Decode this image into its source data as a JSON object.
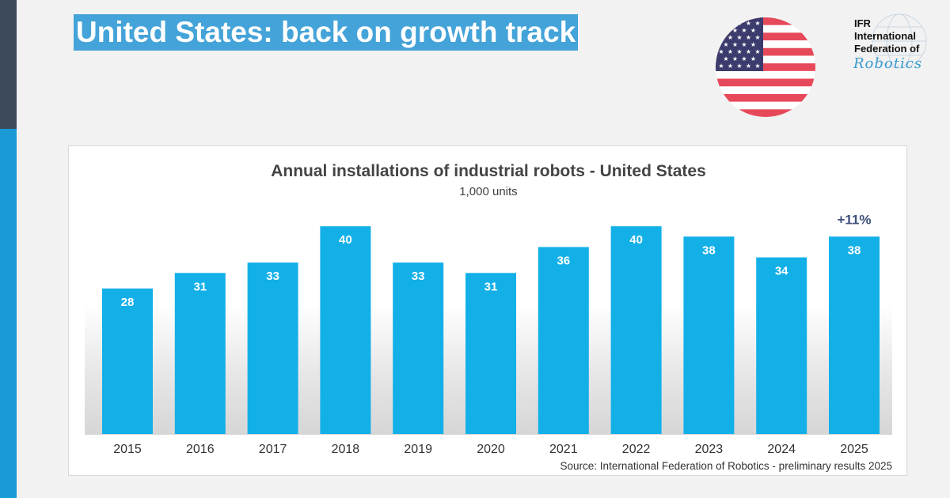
{
  "slide": {
    "title": "United States: back on growth track"
  },
  "logo": {
    "lines": [
      "IFR",
      "International",
      "Federation of"
    ],
    "script": "Robotics"
  },
  "flag": {
    "icon": "us-flag-icon",
    "colors": {
      "red": "#e64a5a",
      "white": "#ffffff",
      "blue": "#3c3b6e"
    }
  },
  "colors": {
    "bar": "#13b0e8",
    "accent": "#44a3d8",
    "growth_label": "#3d4f7a"
  },
  "chart_data": {
    "type": "bar",
    "title": "Annual installations of industrial robots - United States",
    "subtitle": "1,000 units",
    "categories": [
      "2015",
      "2016",
      "2017",
      "2018",
      "2019",
      "2020",
      "2021",
      "2022",
      "2023",
      "2024",
      "2025"
    ],
    "values": [
      28,
      31,
      33,
      40,
      33,
      31,
      36,
      40,
      38,
      34,
      38
    ],
    "data_labels": [
      "28",
      "31",
      "33",
      "40",
      "33",
      "31",
      "36",
      "40",
      "38",
      "34",
      "38"
    ],
    "annotation": {
      "category": "2025",
      "text": "+11%"
    },
    "source": "Source: International Federation of Robotics - preliminary results 2025",
    "grid": false,
    "legend": "none"
  }
}
